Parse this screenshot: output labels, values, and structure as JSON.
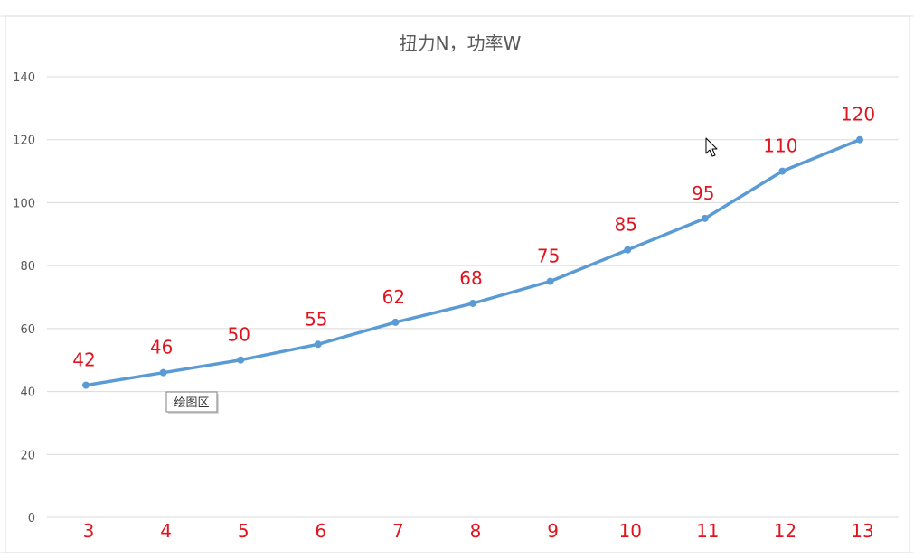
{
  "chart_data": {
    "type": "line",
    "title": "扭力N，功率W",
    "categories": [
      "3",
      "4",
      "5",
      "6",
      "7",
      "8",
      "9",
      "10",
      "11",
      "12",
      "13"
    ],
    "series": [
      {
        "values": [
          42,
          46,
          50,
          55,
          62,
          68,
          75,
          85,
          95,
          110,
          120
        ],
        "color": "#5b9bd5"
      }
    ],
    "data_labels": [
      "42",
      "46",
      "50",
      "55",
      "62",
      "68",
      "75",
      "85",
      "95",
      "110",
      "120"
    ],
    "ylim": [
      0,
      140
    ],
    "yticks": [
      "0",
      "20",
      "40",
      "60",
      "80",
      "100",
      "120",
      "140"
    ],
    "xlabel": "",
    "ylabel": "",
    "grid": true,
    "legend": "none",
    "label_color": "#e0141e"
  },
  "tooltip": {
    "text": "绘图区"
  },
  "cursor_icon": "mouse-pointer-icon"
}
